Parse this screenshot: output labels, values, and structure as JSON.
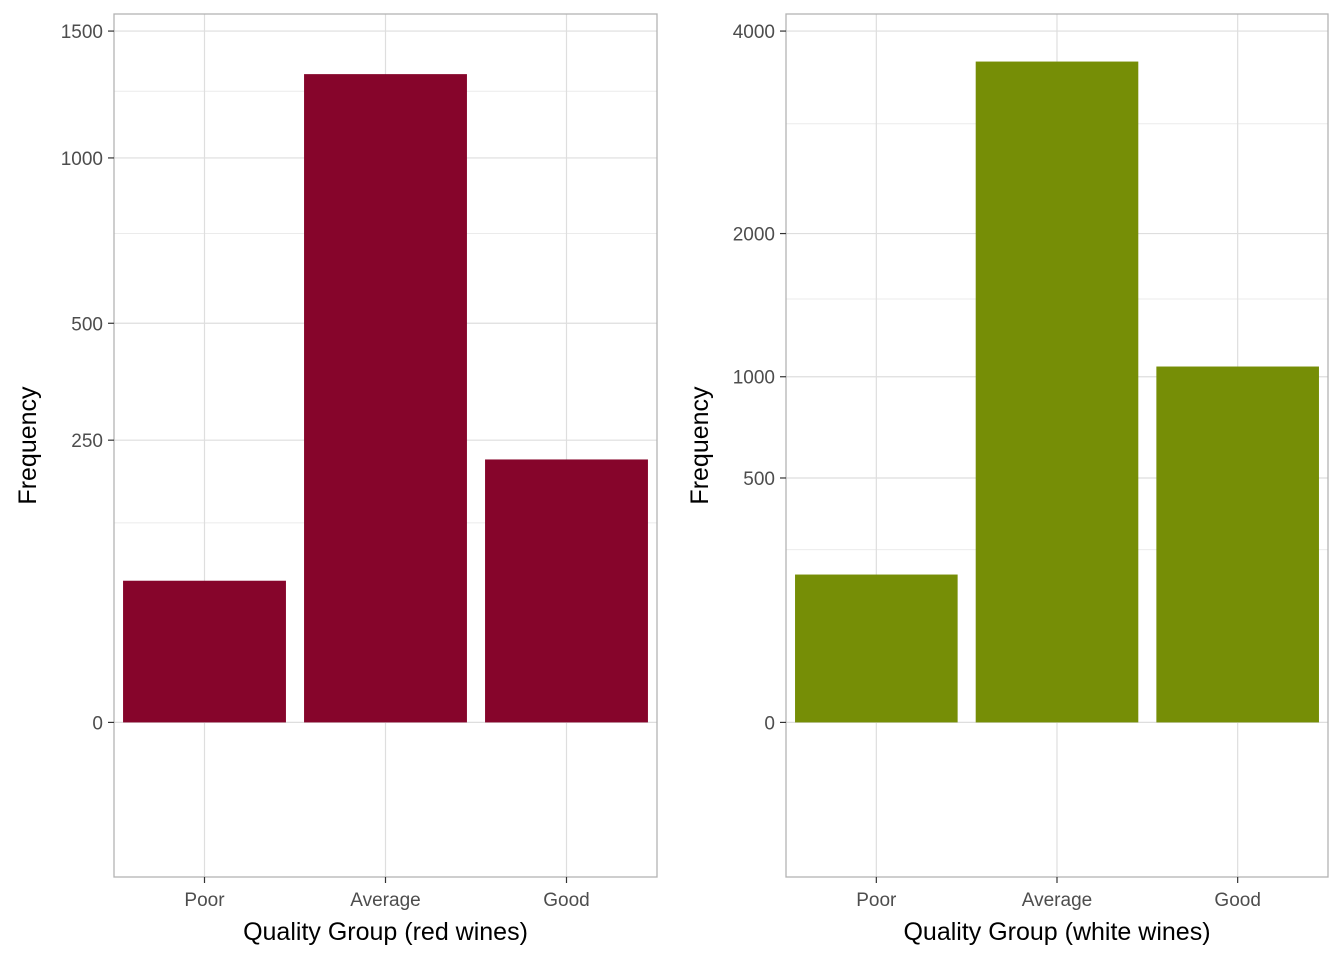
{
  "chart_data": [
    {
      "type": "bar",
      "categories": [
        "Poor",
        "Average",
        "Good"
      ],
      "values": [
        63,
        1319,
        217
      ],
      "xlabel": "Quality Group (red wines)",
      "ylabel": "Frequency",
      "ylim": [
        -75,
        1575
      ],
      "scale": "sqrt",
      "major_ticks": [
        0,
        250,
        500,
        1000,
        1500
      ],
      "major_tick_labels": [
        "0",
        "250",
        "500",
        "1000",
        "1500"
      ],
      "minor_ticks": [
        125,
        750,
        1250
      ],
      "bar_color": "#86052b",
      "grid": true,
      "legend": "none"
    },
    {
      "type": "bar",
      "categories": [
        "Poor",
        "Average",
        "Good"
      ],
      "values": [
        183,
        3655,
        1060
      ],
      "xlabel": "Quality Group (white wines)",
      "ylabel": "Frequency",
      "ylim": [
        -200,
        4200
      ],
      "scale": "sqrt",
      "major_ticks": [
        0,
        500,
        1000,
        2000,
        4000
      ],
      "major_tick_labels": [
        "0",
        "500",
        "1000",
        "2000",
        "4000"
      ],
      "minor_ticks": [
        250,
        1500,
        3000
      ],
      "bar_color": "#768e06",
      "grid": true,
      "legend": "none"
    }
  ]
}
